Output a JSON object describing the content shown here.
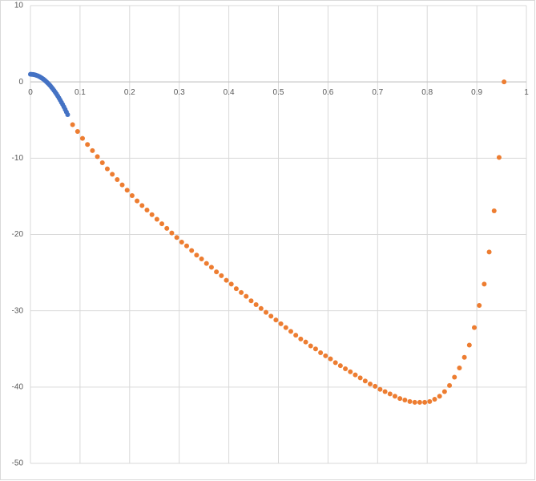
{
  "chart_data": {
    "type": "scatter",
    "xlim": [
      0,
      1
    ],
    "ylim": [
      -50,
      10
    ],
    "xticks": [
      0,
      0.1,
      0.2,
      0.3,
      0.4,
      0.5,
      0.6,
      0.7,
      0.8,
      0.9,
      1
    ],
    "yticks": [
      -50,
      -40,
      -30,
      -20,
      -10,
      0,
      10
    ],
    "grid": true,
    "series": [
      {
        "color": "#4472c4",
        "x": [
          0,
          0.0025,
          0.005,
          0.0075,
          0.01,
          0.0125,
          0.015,
          0.0175,
          0.02,
          0.0225,
          0.025,
          0.0275,
          0.03,
          0.0325,
          0.035,
          0.0375,
          0.04,
          0.0425,
          0.045,
          0.0475,
          0.05,
          0.0525,
          0.055,
          0.0575,
          0.06,
          0.0625,
          0.065,
          0.0675,
          0.07,
          0.0725,
          0.075
        ],
        "values": [
          1,
          0.99,
          0.98,
          0.95,
          0.91,
          0.85,
          0.79,
          0.71,
          0.62,
          0.52,
          0.41,
          0.29,
          0.15,
          0.01,
          -0.15,
          -0.32,
          -0.5,
          -0.7,
          -0.9,
          -1.12,
          -1.35,
          -1.59,
          -1.84,
          -2.11,
          -2.38,
          -2.67,
          -2.97,
          -3.28,
          -3.61,
          -3.94,
          -4.29
        ]
      },
      {
        "color": "#ed7d31",
        "x": [
          0.085,
          0.095,
          0.105,
          0.115,
          0.125,
          0.135,
          0.145,
          0.155,
          0.165,
          0.175,
          0.185,
          0.195,
          0.205,
          0.215,
          0.225,
          0.235,
          0.245,
          0.255,
          0.265,
          0.275,
          0.285,
          0.295,
          0.305,
          0.315,
          0.325,
          0.335,
          0.345,
          0.355,
          0.365,
          0.375,
          0.385,
          0.395,
          0.405,
          0.415,
          0.425,
          0.435,
          0.445,
          0.455,
          0.465,
          0.475,
          0.485,
          0.495,
          0.505,
          0.515,
          0.525,
          0.535,
          0.545,
          0.555,
          0.565,
          0.575,
          0.585,
          0.595,
          0.605,
          0.615,
          0.625,
          0.635,
          0.645,
          0.655,
          0.665,
          0.675,
          0.685,
          0.695,
          0.705,
          0.715,
          0.725,
          0.735,
          0.745,
          0.755,
          0.765,
          0.775,
          0.785,
          0.795,
          0.805,
          0.815,
          0.825,
          0.835,
          0.845,
          0.855,
          0.865,
          0.875,
          0.885,
          0.895,
          0.905,
          0.915,
          0.925,
          0.935,
          0.945,
          0.955
        ],
        "values": [
          -5.6,
          -6.5,
          -7.4,
          -8.2,
          -9.0,
          -9.8,
          -10.6,
          -11.4,
          -12.1,
          -12.8,
          -13.5,
          -14.2,
          -14.9,
          -15.6,
          -16.2,
          -16.8,
          -17.4,
          -18.0,
          -18.6,
          -19.2,
          -19.8,
          -20.4,
          -21.0,
          -21.5,
          -22.1,
          -22.7,
          -23.2,
          -23.8,
          -24.3,
          -24.9,
          -25.4,
          -26.0,
          -26.5,
          -27.1,
          -27.6,
          -28.1,
          -28.7,
          -29.2,
          -29.7,
          -30.2,
          -30.7,
          -31.2,
          -31.7,
          -32.2,
          -32.7,
          -33.2,
          -33.7,
          -34.1,
          -34.6,
          -35.0,
          -35.5,
          -35.9,
          -36.3,
          -36.8,
          -37.2,
          -37.6,
          -38.0,
          -38.4,
          -38.8,
          -39.2,
          -39.6,
          -39.9,
          -40.3,
          -40.6,
          -40.9,
          -41.2,
          -41.5,
          -41.7,
          -41.9,
          -42.0,
          -42.0,
          -42.0,
          -41.9,
          -41.6,
          -41.2,
          -40.6,
          -39.8,
          -38.7,
          -37.5,
          -36.1,
          -34.5,
          -32.2,
          -29.3,
          -26.5,
          -22.3,
          -16.9,
          -9.9,
          0
        ]
      }
    ]
  }
}
